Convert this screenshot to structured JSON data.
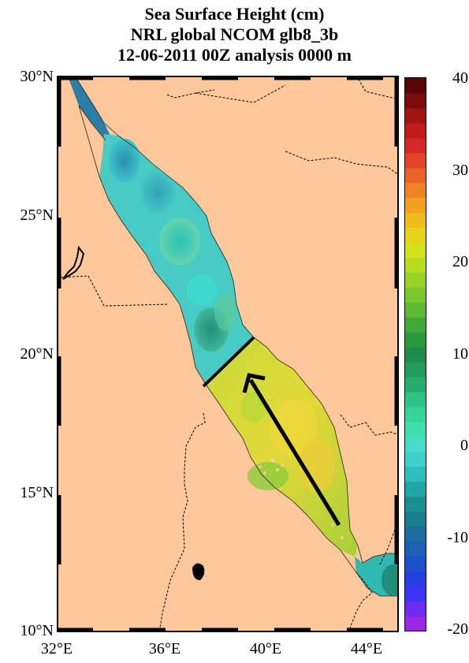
{
  "title": {
    "line1": "Sea Surface Height (cm)",
    "line2": "NRL global NCOM glb8_3b",
    "line3": "12-06-2011 00Z analysis   0000 m"
  },
  "latitude_labels": [
    "30°N",
    "25°N",
    "20°N",
    "15°N",
    "10°N"
  ],
  "longitude_labels": [
    "32°E",
    "36°E",
    "40°E",
    "44°E"
  ],
  "colorbar": {
    "ticks": [
      "40",
      "30",
      "20",
      "10",
      "0",
      "-10",
      "-20"
    ],
    "min": -20,
    "max": 40,
    "colors": [
      "#9b26e6",
      "#6b2cf0",
      "#3a34f6",
      "#2640e0",
      "#1f4fc8",
      "#1d5fb4",
      "#1b6e9f",
      "#1a7f8c",
      "#1c9090",
      "#22a6a6",
      "#2fbcbc",
      "#40d0cc",
      "#46dcc8",
      "#3ee0b0",
      "#36d49a",
      "#2ec284",
      "#26ad6e",
      "#229c5c",
      "#1f8c4c",
      "#2a9a3e",
      "#42aa3a",
      "#5cba34",
      "#78c82e",
      "#96d428",
      "#b6dc22",
      "#d2e01e",
      "#e6d41c",
      "#f0bc1c",
      "#f2a020",
      "#ee8424",
      "#e86428",
      "#e2442a",
      "#d62828",
      "#c01c1c",
      "#a01414",
      "#7c0c0c",
      "#5a0606"
    ],
    "land_color": "#fec89a"
  },
  "legend_annotation": "arrow"
}
